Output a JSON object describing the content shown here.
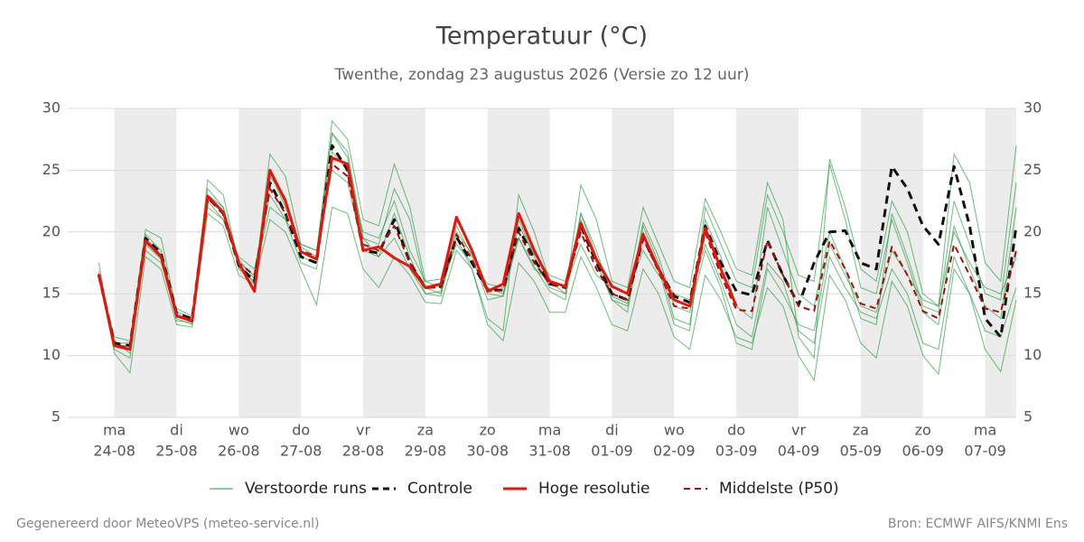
{
  "chart_data": {
    "type": "line",
    "title": "Temperatuur (°C)",
    "subtitle": "Twenthe, zondag 23 augustus 2026 (Versie zo 12 uur)",
    "footer_left": "Gegenereerd door MeteoVPS (meteo-service.nl)",
    "footer_right": "Bron: ECMWF AIFS/KNMI Ens",
    "legend": "bottom",
    "grid": true,
    "xlim": [
      -18,
      348
    ],
    "ylim": [
      5,
      30
    ],
    "yticks": [
      5,
      10,
      15,
      20,
      25,
      30
    ],
    "xticks": [
      {
        "value": 0,
        "label": "ma 24-08"
      },
      {
        "value": 24,
        "label": "di 25-08"
      },
      {
        "value": 48,
        "label": "wo 26-08"
      },
      {
        "value": 72,
        "label": "do 27-08"
      },
      {
        "value": 96,
        "label": "vr 28-08"
      },
      {
        "value": 120,
        "label": "za 29-08"
      },
      {
        "value": 144,
        "label": "zo 30-08"
      },
      {
        "value": 168,
        "label": "ma 31-08"
      },
      {
        "value": 192,
        "label": "di 01-09"
      },
      {
        "value": 216,
        "label": "wo 02-09"
      },
      {
        "value": 240,
        "label": "do 03-09"
      },
      {
        "value": 264,
        "label": "vr 04-09"
      },
      {
        "value": 288,
        "label": "za 05-09"
      },
      {
        "value": 312,
        "label": "zo 06-09"
      },
      {
        "value": 336,
        "label": "ma 07-09"
      }
    ],
    "x": [
      -6,
      0,
      6,
      12,
      18,
      24,
      30,
      36,
      42,
      48,
      54,
      60,
      66,
      72,
      78,
      84,
      90,
      96,
      102,
      108,
      114,
      120,
      126,
      132,
      138,
      144,
      150,
      156,
      162,
      168,
      174,
      180,
      186,
      192,
      198,
      204,
      210,
      216,
      222,
      228,
      234,
      240,
      246,
      252,
      258,
      264,
      270,
      276,
      282,
      288,
      294,
      300,
      306,
      312,
      318,
      324,
      330,
      336,
      342,
      348
    ],
    "ensemble": {
      "name": "Verstoorde runs",
      "color": "#1f9a3c",
      "members": [
        [
          16.8,
          11.2,
          10.2,
          19.8,
          18.5,
          13.5,
          12.6,
          23.5,
          22.0,
          17.0,
          16.0,
          24.5,
          22.8,
          18.0,
          17.5,
          28.0,
          26.0,
          19.5,
          18.0,
          21.5,
          18.0,
          15.0,
          14.8,
          20.5,
          18.0,
          14.5,
          14.8,
          21.0,
          18.0,
          15.5,
          15.0,
          21.5,
          18.0,
          14.5,
          13.5,
          20.5,
          17.5,
          13.0,
          12.5,
          21.0,
          18.0,
          14.0,
          13.0,
          22.0,
          18.5,
          15.0,
          14.0,
          20.0,
          17.0,
          13.0,
          12.5,
          21.5,
          18.0,
          14.0,
          13.5,
          22.5,
          19.0,
          15.0,
          14.5,
          24.0
        ],
        [
          17.5,
          10.5,
          9.8,
          19.0,
          17.8,
          13.0,
          12.5,
          22.5,
          21.0,
          17.5,
          16.5,
          22.0,
          21.0,
          17.5,
          17.0,
          26.5,
          25.0,
          20.0,
          19.5,
          22.5,
          18.5,
          16.0,
          15.5,
          19.0,
          17.5,
          15.8,
          15.5,
          19.5,
          17.0,
          16.0,
          15.5,
          19.0,
          16.5,
          15.5,
          15.0,
          18.5,
          16.5,
          15.0,
          14.5,
          19.0,
          16.0,
          12.5,
          11.5,
          17.5,
          16.0,
          12.0,
          11.0,
          18.0,
          15.5,
          13.5,
          13.0,
          17.0,
          15.0,
          11.0,
          10.5,
          18.0,
          15.0,
          12.0,
          11.5,
          15.5
        ],
        [
          16.2,
          11.0,
          11.0,
          18.5,
          17.5,
          13.8,
          13.2,
          22.0,
          21.0,
          18.0,
          17.0,
          23.0,
          21.0,
          19.0,
          18.5,
          25.0,
          24.0,
          18.5,
          18.0,
          19.5,
          17.0,
          15.0,
          15.2,
          20.0,
          18.2,
          15.5,
          15.0,
          20.5,
          18.2,
          16.5,
          16.0,
          21.0,
          17.5,
          14.5,
          14.0,
          20.0,
          17.0,
          12.5,
          12.0,
          22.0,
          19.0,
          16.0,
          15.5,
          23.0,
          20.0,
          16.5,
          16.0,
          25.5,
          21.0,
          15.5,
          15.0,
          21.0,
          17.5,
          13.5,
          12.5,
          20.5,
          17.0,
          14.0,
          13.0,
          22.0
        ],
        [
          16.6,
          10.8,
          10.8,
          19.5,
          18.2,
          12.8,
          12.7,
          23.0,
          22.0,
          17.8,
          16.2,
          24.8,
          22.0,
          18.8,
          18.0,
          29.0,
          27.5,
          21.0,
          20.5,
          25.5,
          22.0,
          16.0,
          16.2,
          21.0,
          18.5,
          15.0,
          14.8,
          19.5,
          17.2,
          15.2,
          14.5,
          21.5,
          18.5,
          14.8,
          14.2,
          20.8,
          18.0,
          14.0,
          13.5,
          18.5,
          15.5,
          11.0,
          10.5,
          17.0,
          15.0,
          12.5,
          12.0,
          19.0,
          16.5,
          14.0,
          13.5,
          18.5,
          16.5,
          14.5,
          14.0,
          20.0,
          17.5,
          15.5,
          15.0,
          18.0
        ],
        [
          16.4,
          11.5,
          11.2,
          20.2,
          19.5,
          13.6,
          13.0,
          24.2,
          23.0,
          17.5,
          15.8,
          26.3,
          24.5,
          19.0,
          18.5,
          28.0,
          26.5,
          19.5,
          19.0,
          23.5,
          21.0,
          15.5,
          15.0,
          19.5,
          17.0,
          13.0,
          12.0,
          23.0,
          20.0,
          16.0,
          15.0,
          23.8,
          21.0,
          16.0,
          15.5,
          22.0,
          19.0,
          16.0,
          15.5,
          22.7,
          20.0,
          17.0,
          16.5,
          24.0,
          21.0,
          11.5,
          9.8,
          25.9,
          22.0,
          17.0,
          16.0,
          22.5,
          20.0,
          15.0,
          14.0,
          26.3,
          24.0,
          17.5,
          16.0,
          27.0
        ],
        [
          16.5,
          10.2,
          8.6,
          18.0,
          17.0,
          12.5,
          12.3,
          21.5,
          20.5,
          16.5,
          15.8,
          21.0,
          20.0,
          17.0,
          14.1,
          22.0,
          21.5,
          17.0,
          15.5,
          18.0,
          16.5,
          14.3,
          14.2,
          18.5,
          17.0,
          12.5,
          11.2,
          17.5,
          16.0,
          13.5,
          13.5,
          18.0,
          15.5,
          12.5,
          12.0,
          17.0,
          15.0,
          11.5,
          10.5,
          16.5,
          14.5,
          11.5,
          11.0,
          15.5,
          14.0,
          10.0,
          8.0,
          16.5,
          14.5,
          11.0,
          9.8,
          16.0,
          14.0,
          10.0,
          8.5,
          17.0,
          15.0,
          10.5,
          8.7,
          14.5
        ]
      ]
    },
    "series": [
      {
        "name": "Controle",
        "color": "#111111",
        "dash": true,
        "values": [
          16.5,
          11.0,
          10.8,
          19.5,
          18.3,
          13.4,
          13.0,
          22.8,
          21.5,
          17.3,
          16.0,
          24.0,
          21.5,
          18.0,
          17.5,
          27.0,
          25.0,
          18.5,
          18.3,
          21.0,
          17.5,
          15.5,
          15.6,
          19.6,
          17.5,
          15.3,
          15.3,
          20.3,
          17.8,
          15.8,
          15.5,
          20.5,
          17.5,
          15.0,
          14.5,
          19.5,
          17.0,
          14.8,
          14.3,
          20.5,
          17.5,
          15.2,
          14.9,
          19.3,
          16.5,
          14.1,
          17.5,
          20.0,
          20.1,
          17.5,
          17.0,
          25.3,
          23.5,
          20.5,
          19.0,
          25.3,
          20.5,
          13.0,
          11.5,
          20.5
        ]
      },
      {
        "name": "Hoge resolutie",
        "color": "#e8140c",
        "dash": false,
        "values": [
          16.6,
          10.8,
          10.5,
          19.3,
          18.0,
          13.2,
          12.8,
          22.9,
          21.6,
          17.5,
          15.2,
          25.0,
          22.5,
          18.4,
          17.8,
          26.0,
          25.5,
          18.5,
          18.8,
          17.9,
          17.2,
          15.5,
          15.8,
          21.2,
          18.5,
          15.2,
          15.8,
          21.5,
          18.5,
          16.0,
          15.6,
          20.7,
          17.8,
          15.6,
          15.0,
          19.8,
          17.0,
          14.5,
          14.0,
          20.3,
          17.0,
          14.0,
          null,
          null,
          null,
          null,
          null,
          null,
          null,
          null,
          null,
          null,
          null,
          null,
          null,
          null,
          null,
          null,
          null,
          null
        ]
      },
      {
        "name": "Middelste (P50)",
        "color": "#a31010",
        "dash": true,
        "values": [
          16.5,
          10.9,
          10.6,
          19.2,
          18.0,
          13.3,
          12.9,
          22.8,
          21.5,
          17.5,
          16.5,
          23.5,
          21.5,
          18.5,
          18.0,
          25.5,
          24.5,
          19.0,
          18.5,
          20.5,
          17.5,
          15.5,
          15.5,
          19.8,
          17.8,
          15.2,
          15.3,
          20.0,
          17.5,
          15.8,
          15.5,
          20.0,
          17.0,
          15.0,
          14.5,
          19.5,
          16.8,
          14.0,
          13.8,
          20.0,
          16.5,
          13.7,
          13.6,
          19.3,
          16.5,
          14.0,
          13.6,
          19.3,
          17.0,
          14.2,
          13.8,
          18.8,
          16.5,
          13.6,
          13.0,
          19.0,
          16.5,
          13.8,
          13.5,
          18.5
        ]
      }
    ]
  }
}
